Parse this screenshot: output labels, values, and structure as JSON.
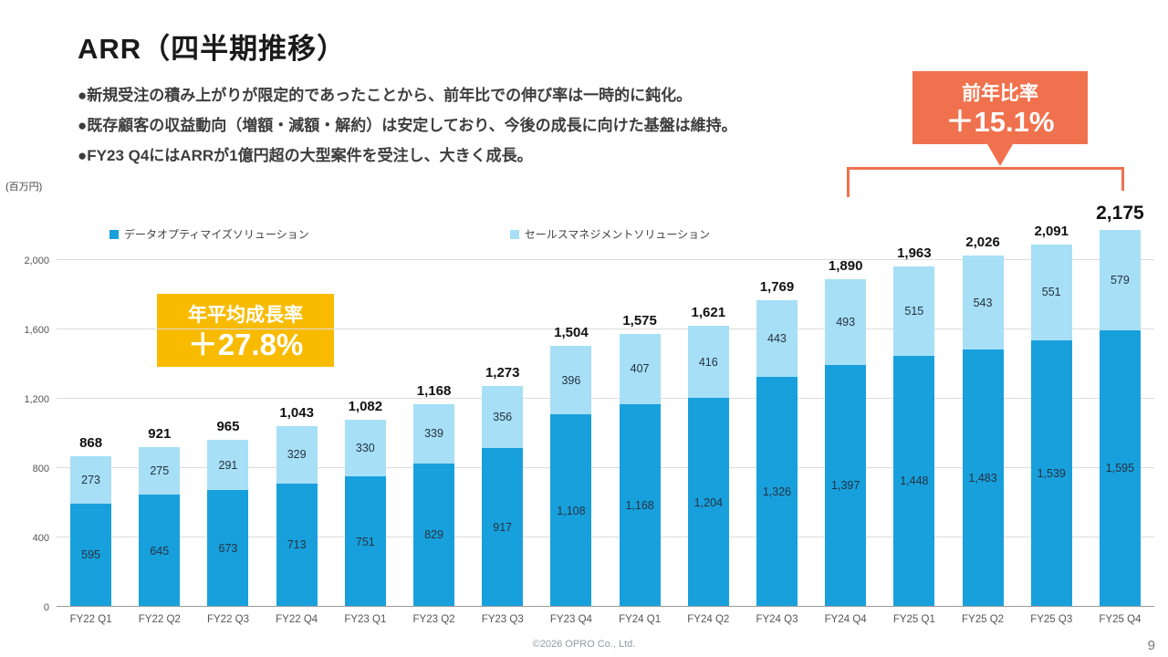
{
  "page": {
    "title": "ARR（四半期推移）",
    "bullets": [
      "●新規受注の積み上がりが限定的であったことから、前年比での伸び率は一時的に鈍化。",
      "●既存顧客の収益動向（増額・減額・解約）は安定しており、今後の成長に向けた基盤は維持。",
      "●FY23 Q4にはARRが1億円超の大型案件を受注し、大きく成長。"
    ],
    "footer": "©2026 OPRO Co., Ltd.",
    "page_number": "9"
  },
  "badges": {
    "yoy": {
      "label": "前年比率",
      "value": "＋15.1%",
      "color": "#F0714D"
    },
    "cagr": {
      "label": "年平均成長率",
      "value": "＋27.8%",
      "color": "#F8BB00"
    }
  },
  "chart_data": {
    "type": "bar",
    "stacked": true,
    "unit_label": "(百万円)",
    "categories": [
      "FY22 Q1",
      "FY22 Q2",
      "FY22 Q3",
      "FY22 Q4",
      "FY23 Q1",
      "FY23 Q2",
      "FY23 Q3",
      "FY23 Q4",
      "FY24 Q1",
      "FY24 Q2",
      "FY24 Q3",
      "FY24 Q4",
      "FY25 Q1",
      "FY25 Q2",
      "FY25 Q3",
      "FY25 Q4"
    ],
    "series": [
      {
        "name": "データオプティマイズソリューション",
        "color": "#18A0DC",
        "values": [
          595,
          645,
          673,
          713,
          751,
          829,
          917,
          1108,
          1168,
          1204,
          1326,
          1397,
          1448,
          1483,
          1539,
          1595
        ]
      },
      {
        "name": "セールスマネジメントソリューション",
        "color": "#A6DFF6",
        "values": [
          273,
          275,
          291,
          329,
          330,
          339,
          356,
          396,
          407,
          416,
          443,
          493,
          515,
          543,
          551,
          579
        ]
      }
    ],
    "totals": [
      868,
      921,
      965,
      1043,
      1082,
      1168,
      1273,
      1504,
      1575,
      1621,
      1769,
      1890,
      1963,
      2026,
      2091,
      2175
    ],
    "ylim": [
      0,
      2000
    ],
    "yticks": [
      0,
      400,
      800,
      1200,
      1600,
      2000
    ],
    "grid": true,
    "legend_position": "top"
  }
}
